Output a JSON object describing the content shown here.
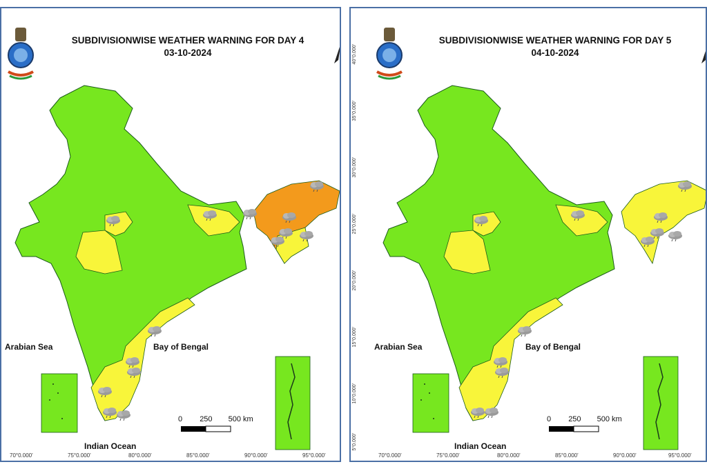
{
  "colors": {
    "green": "#77e71f",
    "yellow": "#f8f53a",
    "orange": "#f39a1c",
    "border": "#1a5a1a",
    "frame": "#4a6fa5"
  },
  "maps": [
    {
      "title": "SUBDIVISIONWISE WEATHER WARNING FOR DAY 4",
      "date": "03-10-2024",
      "sea_labels": {
        "arabian": "Arabian Sea",
        "bay": "Bay of Bengal",
        "indian": "Indian Ocean"
      },
      "scale": {
        "n0": "0",
        "n1": "250",
        "n2": "500 km"
      },
      "lon_labels": [
        "70°0.000'",
        "75°0.000'",
        "80°0.000'",
        "85°0.000'",
        "90°0.000'",
        "95°0.000'"
      ],
      "northeast_warning": "orange",
      "icons": [
        "cloud-thunder-icon",
        "cloud-rain-icon"
      ]
    },
    {
      "title": "SUBDIVISIONWISE WEATHER WARNING FOR DAY 5",
      "date": "04-10-2024",
      "sea_labels": {
        "arabian": "Arabian Sea",
        "bay": "Bay of Bengal",
        "indian": "Indian Ocean"
      },
      "scale": {
        "n0": "0",
        "n1": "250",
        "n2": "500 km"
      },
      "lon_labels": [
        "70°0.000'",
        "75°0.000'",
        "80°0.000'",
        "85°0.000'",
        "90°0.000'",
        "95°0.000'"
      ],
      "lat_labels": [
        "40°0.000'",
        "35°0.000'",
        "30°0.000'",
        "25°0.000'",
        "20°0.000'",
        "15°0.000'",
        "10°0.000'",
        "5°0.000'"
      ],
      "northeast_warning": "yellow",
      "icons": [
        "cloud-thunder-icon",
        "cloud-rain-icon"
      ]
    }
  ]
}
